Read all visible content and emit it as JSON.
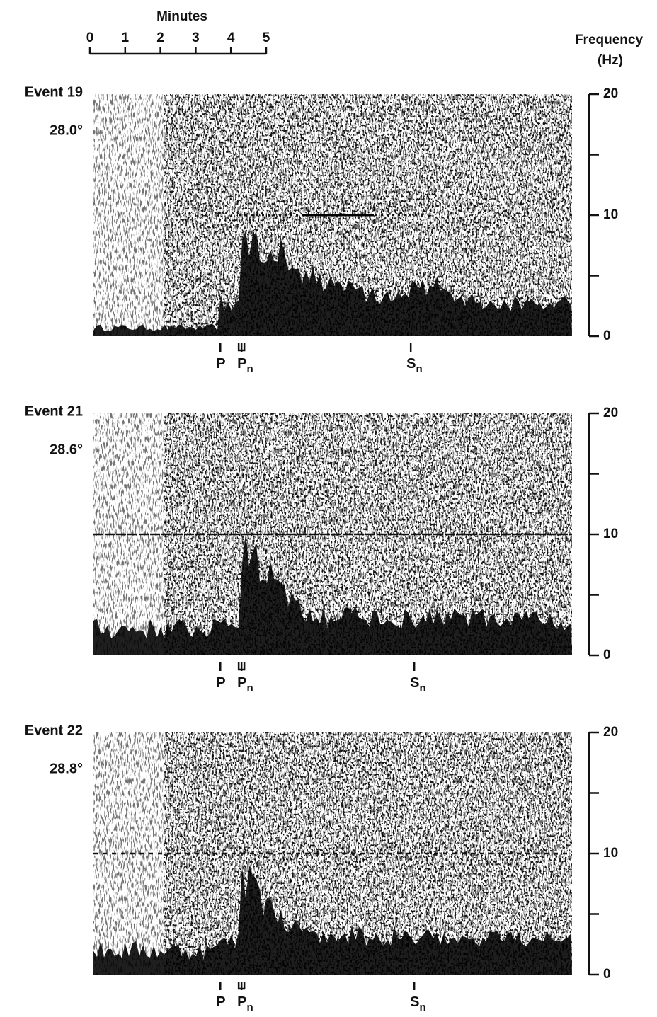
{
  "chart_data": {
    "type": "spectrogram",
    "time_axis": {
      "title": "Minutes",
      "xlim": [
        0,
        5
      ],
      "ticks": [
        0,
        1,
        2,
        3,
        4,
        5
      ]
    },
    "frequency_axis": {
      "title": "Frequency",
      "unit": "(Hz)",
      "ylim": [
        0,
        20
      ],
      "ticks": [
        0,
        10,
        20
      ],
      "minor_ticks": [
        5,
        15
      ]
    },
    "panels": [
      {
        "event": "Event 19",
        "distance": "28.0°",
        "phases": [
          {
            "name": "P",
            "time": 3.7
          },
          {
            "name": "P",
            "subscript": "n",
            "time": 4.3
          },
          {
            "name": "S",
            "subscript": "n",
            "time": 9.1
          }
        ]
      },
      {
        "event": "Event 21",
        "distance": "28.6°",
        "phases": [
          {
            "name": "P",
            "time": 3.7
          },
          {
            "name": "P",
            "subscript": "n",
            "time": 4.3
          },
          {
            "name": "S",
            "subscript": "n",
            "time": 9.2
          }
        ]
      },
      {
        "event": "Event 22",
        "distance": "28.8°",
        "phases": [
          {
            "name": "P",
            "time": 3.7
          },
          {
            "name": "P",
            "subscript": "n",
            "time": 4.3
          },
          {
            "name": "S",
            "subscript": "n",
            "time": 9.2
          }
        ]
      }
    ]
  }
}
